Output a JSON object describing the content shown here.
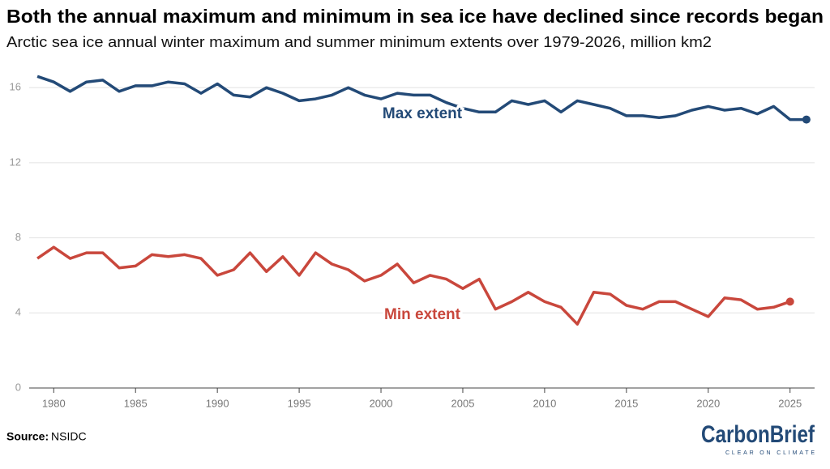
{
  "chart_data": {
    "type": "line",
    "title": "Both the annual maximum and minimum in sea ice have declined since records began",
    "subtitle": "Arctic sea ice annual winter maximum and summer minimum extents over 1979-2026, million km2",
    "x": [
      1979,
      1980,
      1981,
      1982,
      1983,
      1984,
      1985,
      1986,
      1987,
      1988,
      1989,
      1990,
      1991,
      1992,
      1993,
      1994,
      1995,
      1996,
      1997,
      1998,
      1999,
      2000,
      2001,
      2002,
      2003,
      2004,
      2005,
      2006,
      2007,
      2008,
      2009,
      2010,
      2011,
      2012,
      2013,
      2014,
      2015,
      2016,
      2017,
      2018,
      2019,
      2020,
      2021,
      2022,
      2023,
      2024,
      2025,
      2026
    ],
    "series": [
      {
        "name": "Max extent",
        "color": "#234a77",
        "values": [
          16.6,
          16.3,
          15.8,
          16.3,
          16.4,
          15.8,
          16.1,
          16.1,
          16.3,
          16.2,
          15.7,
          16.2,
          15.6,
          15.5,
          16.0,
          15.7,
          15.3,
          15.4,
          15.6,
          16.0,
          15.6,
          15.4,
          15.7,
          15.6,
          15.6,
          15.2,
          14.9,
          14.7,
          14.7,
          15.3,
          15.1,
          15.3,
          14.7,
          15.3,
          15.1,
          14.9,
          14.5,
          14.5,
          14.4,
          14.5,
          14.8,
          15.0,
          14.8,
          14.9,
          14.6,
          15.0,
          14.3,
          14.3
        ]
      },
      {
        "name": "Min extent",
        "color": "#c9473c",
        "values": [
          6.9,
          7.5,
          6.9,
          7.2,
          7.2,
          6.4,
          6.5,
          7.1,
          7.0,
          7.1,
          6.9,
          6.0,
          6.3,
          7.2,
          6.2,
          7.0,
          6.0,
          7.2,
          6.6,
          6.3,
          5.7,
          6.0,
          6.6,
          5.6,
          6.0,
          5.8,
          5.3,
          5.8,
          4.2,
          4.6,
          5.1,
          4.6,
          4.3,
          3.4,
          5.1,
          5.0,
          4.4,
          4.2,
          4.6,
          4.6,
          4.2,
          3.8,
          4.8,
          4.7,
          4.2,
          4.3,
          4.6,
          null
        ]
      }
    ],
    "xlim": [
      1978.5,
      2026.5
    ],
    "xticks": [
      1980,
      1985,
      1990,
      1995,
      2000,
      2005,
      2010,
      2015,
      2020,
      2025
    ],
    "ylim": [
      0,
      17
    ],
    "yticks": [
      0,
      4,
      8,
      12,
      16
    ],
    "grid": true,
    "source_label": "Source:",
    "source": "NSIDC",
    "logo": "CarbonBrief",
    "logo_tagline": "CLEAR ON CLIMATE"
  }
}
